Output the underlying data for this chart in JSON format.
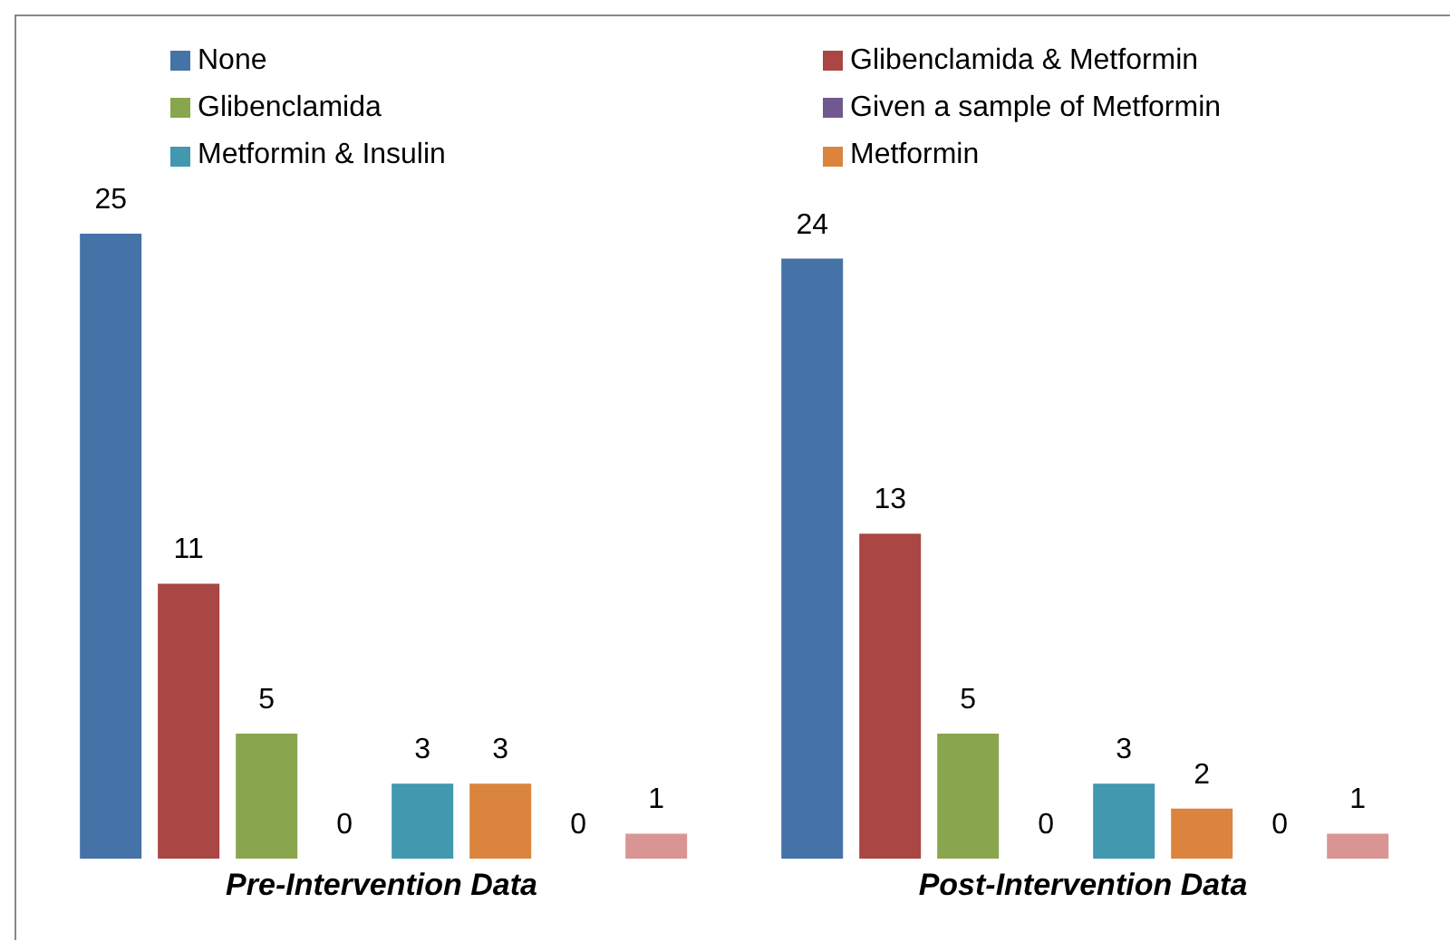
{
  "chart_data": {
    "type": "bar",
    "categories": [
      "Pre-Intervention Data",
      "Post-Intervention Data"
    ],
    "series": [
      {
        "name": "None",
        "color": "#4572a7",
        "values": [
          25,
          24
        ]
      },
      {
        "name": "Glibenclamida & Metformin",
        "color": "#aa4643",
        "values": [
          11,
          13
        ]
      },
      {
        "name": "Glibenclamida",
        "color": "#89a54e",
        "values": [
          5,
          5
        ]
      },
      {
        "name": "Given a sample of Metformin",
        "color": "#71588f",
        "values": [
          0,
          0
        ]
      },
      {
        "name": "Metformin & Insulin",
        "color": "#4198af",
        "values": [
          3,
          3
        ]
      },
      {
        "name": "Metformin",
        "color": "#db843d",
        "values": [
          3,
          2
        ]
      },
      {
        "color": "#2c4d75",
        "values": [
          0,
          0
        ]
      },
      {
        "color": "#d99594",
        "values": [
          1,
          1
        ]
      }
    ],
    "data_labels": true,
    "legend": "top",
    "grid": false
  }
}
